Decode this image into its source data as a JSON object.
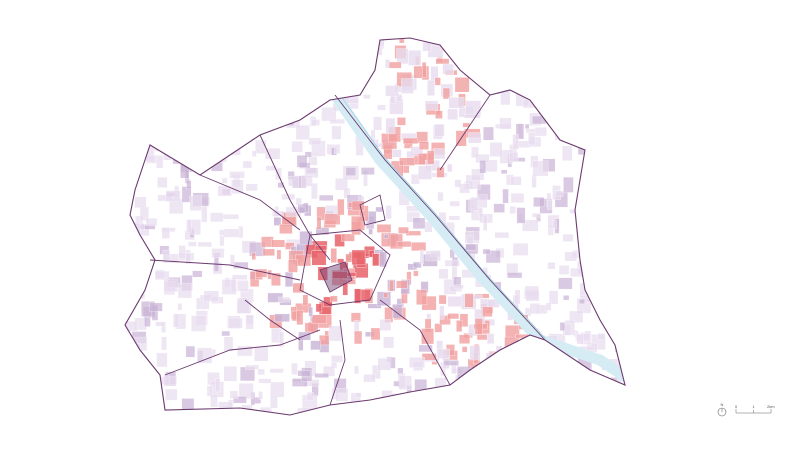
{
  "map": {
    "colors": {
      "outline": "#6b3a6e",
      "low_density": "#e8dcef",
      "mid_density": "#c9b3d6",
      "high_density": "#f2a0a0",
      "core": "#e8636a",
      "danube": "#d6ecf5",
      "danube_edge": "#8fc6dc"
    }
  },
  "legend": {
    "north_label": "N",
    "scale_labels": [
      "0",
      "1",
      "2km"
    ]
  }
}
